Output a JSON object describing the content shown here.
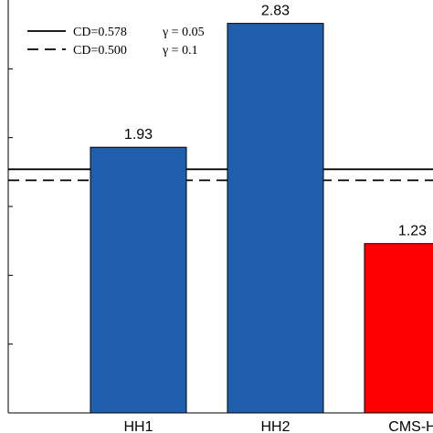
{
  "chart_data": {
    "type": "bar",
    "categories": [
      "HH1",
      "HH2",
      "CMS-H"
    ],
    "values": [
      1.93,
      2.83,
      1.23
    ],
    "value_labels": [
      "1.93",
      "2.83",
      "1.23"
    ],
    "bar_colors": [
      "#1f5fae",
      "#1f5fae",
      "#ff0000"
    ],
    "ylim": [
      0,
      3
    ],
    "reference_lines": [
      {
        "label": "CD=0.578",
        "gamma_label": "γ = 0.05",
        "value": 1.77,
        "style": "solid"
      },
      {
        "label": "CD=0.500",
        "gamma_label": "γ = 0.1",
        "value": 1.69,
        "style": "dashed"
      }
    ],
    "legend_position": "top-left",
    "grid": false
  }
}
